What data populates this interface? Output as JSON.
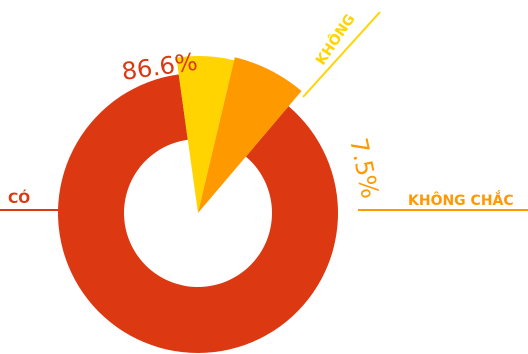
{
  "chart_data": {
    "type": "pie",
    "slices": [
      {
        "category": "CÓ",
        "value": 86.6,
        "value_label": "86.6%",
        "color": "#dc3912"
      },
      {
        "category": "KHÔNG",
        "value": 5.9,
        "value_label": "",
        "color": "#ffd400"
      },
      {
        "category": "KHÔNG CHẮC",
        "value": 7.5,
        "value_label": "7.5%",
        "color": "#ff9900"
      }
    ]
  }
}
